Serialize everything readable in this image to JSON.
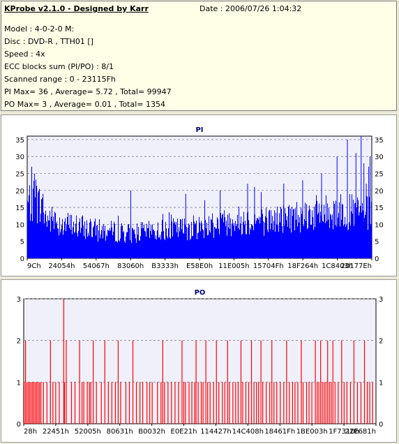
{
  "header": {
    "title": "KProbe v2.1.0 - Designed by Karr",
    "date": "Date : 2006/07/26 1:04:32",
    "lines": [
      "Model : 4-0-2-0 M:",
      "Disc : DVD-R , TTH01 []",
      "Speed : 4x",
      "ECC blocks sum (PI/PO) : 8/1",
      "Scanned range : 0 - 23115Fh",
      "PI Max= 36 , Average= 5.72 , Total= 99947",
      "PO Max= 3 , Average= 0.01 , Total= 1354"
    ]
  },
  "colors": {
    "pi": "#0000ff",
    "po": "#ff0000",
    "plot_bg": "#f0f0fa",
    "grid": "#8080a0"
  },
  "chart_data": [
    {
      "type": "bar",
      "title": "PI",
      "x_tick_labels": [
        "9Ch",
        "24054h",
        "54067h",
        "83060h",
        "B3333h",
        "E58E0h",
        "11E005h",
        "15704Fh",
        "18F264h",
        "1C8403h",
        "20177Eh"
      ],
      "y_ticks": [
        0,
        5,
        10,
        15,
        20,
        25,
        30,
        35
      ],
      "ylim": [
        0,
        36
      ],
      "xlim": [
        0,
        1
      ],
      "profile": [
        [
          0,
          17
        ],
        [
          0.02,
          20
        ],
        [
          0.05,
          13
        ],
        [
          0.1,
          11
        ],
        [
          0.2,
          9
        ],
        [
          0.3,
          8
        ],
        [
          0.4,
          9
        ],
        [
          0.5,
          10
        ],
        [
          0.6,
          12
        ],
        [
          0.7,
          12
        ],
        [
          0.8,
          14
        ],
        [
          0.9,
          15
        ],
        [
          1.0,
          14
        ]
      ],
      "spikes": [
        [
          0.012,
          27
        ],
        [
          0.02,
          25
        ],
        [
          0.045,
          19
        ],
        [
          0.3,
          20
        ],
        [
          0.46,
          19
        ],
        [
          0.56,
          20
        ],
        [
          0.64,
          22
        ],
        [
          0.66,
          21
        ],
        [
          0.745,
          22
        ],
        [
          0.8,
          23
        ],
        [
          0.855,
          25
        ],
        [
          0.9,
          30
        ],
        [
          0.93,
          35
        ],
        [
          0.955,
          31
        ],
        [
          0.97,
          36
        ],
        [
          0.978,
          28
        ],
        [
          0.985,
          22
        ],
        [
          0.992,
          27
        ],
        [
          0.996,
          30
        ]
      ]
    },
    {
      "type": "bar",
      "title": "PO",
      "x_tick_labels": [
        "28h",
        "22451h",
        "52005h",
        "80631h",
        "B0032h",
        "E0E21h",
        "114427h",
        "14C408h",
        "18461Fh",
        "1BE003h",
        "1F7310h",
        "22E681h"
      ],
      "y_ticks": [
        0,
        1,
        2,
        3
      ],
      "ylim": [
        0,
        3
      ],
      "xlim": [
        0,
        1
      ],
      "bars": [
        [
          0.0,
          1
        ],
        [
          0.004,
          2
        ],
        [
          0.008,
          1
        ],
        [
          0.012,
          1
        ],
        [
          0.016,
          1
        ],
        [
          0.02,
          1
        ],
        [
          0.024,
          1
        ],
        [
          0.028,
          1
        ],
        [
          0.032,
          1
        ],
        [
          0.036,
          1
        ],
        [
          0.04,
          1
        ],
        [
          0.044,
          1
        ],
        [
          0.048,
          1
        ],
        [
          0.055,
          1
        ],
        [
          0.065,
          1
        ],
        [
          0.075,
          2
        ],
        [
          0.082,
          1
        ],
        [
          0.09,
          1
        ],
        [
          0.1,
          1
        ],
        [
          0.115,
          1
        ],
        [
          0.12,
          2
        ],
        [
          0.135,
          1
        ],
        [
          0.145,
          1
        ],
        [
          0.158,
          2
        ],
        [
          0.165,
          1
        ],
        [
          0.17,
          1
        ],
        [
          0.18,
          1
        ],
        [
          0.186,
          1
        ],
        [
          0.19,
          1
        ],
        [
          0.197,
          2
        ],
        [
          0.206,
          1
        ],
        [
          0.22,
          1
        ],
        [
          0.23,
          2
        ],
        [
          0.24,
          1
        ],
        [
          0.25,
          1
        ],
        [
          0.26,
          1
        ],
        [
          0.268,
          2
        ],
        [
          0.275,
          1
        ],
        [
          0.29,
          1
        ],
        [
          0.3,
          1
        ],
        [
          0.31,
          2
        ],
        [
          0.32,
          1
        ],
        [
          0.33,
          1
        ],
        [
          0.338,
          1
        ],
        [
          0.35,
          1
        ],
        [
          0.358,
          1
        ],
        [
          0.365,
          1
        ],
        [
          0.38,
          1
        ],
        [
          0.39,
          1
        ],
        [
          0.395,
          2
        ],
        [
          0.4,
          1
        ],
        [
          0.41,
          1
        ],
        [
          0.42,
          1
        ],
        [
          0.43,
          1
        ],
        [
          0.44,
          1
        ],
        [
          0.45,
          2
        ],
        [
          0.455,
          1
        ],
        [
          0.46,
          1
        ],
        [
          0.47,
          1
        ],
        [
          0.478,
          1
        ],
        [
          0.486,
          1
        ],
        [
          0.49,
          2
        ],
        [
          0.496,
          1
        ],
        [
          0.505,
          1
        ],
        [
          0.51,
          1
        ],
        [
          0.518,
          2
        ],
        [
          0.523,
          1
        ],
        [
          0.53,
          1
        ],
        [
          0.54,
          1
        ],
        [
          0.548,
          2
        ],
        [
          0.555,
          1
        ],
        [
          0.565,
          1
        ],
        [
          0.572,
          1
        ],
        [
          0.58,
          2
        ],
        [
          0.585,
          1
        ],
        [
          0.595,
          1
        ],
        [
          0.603,
          1
        ],
        [
          0.61,
          1
        ],
        [
          0.618,
          2
        ],
        [
          0.623,
          1
        ],
        [
          0.632,
          1
        ],
        [
          0.64,
          1
        ],
        [
          0.648,
          2
        ],
        [
          0.655,
          1
        ],
        [
          0.662,
          1
        ],
        [
          0.668,
          1
        ],
        [
          0.675,
          2
        ],
        [
          0.68,
          1
        ],
        [
          0.69,
          1
        ],
        [
          0.7,
          1
        ],
        [
          0.706,
          2
        ],
        [
          0.712,
          1
        ],
        [
          0.72,
          1
        ],
        [
          0.73,
          1
        ],
        [
          0.74,
          1
        ],
        [
          0.748,
          2
        ],
        [
          0.756,
          1
        ],
        [
          0.765,
          1
        ],
        [
          0.772,
          1
        ],
        [
          0.78,
          1
        ],
        [
          0.79,
          2
        ],
        [
          0.795,
          1
        ],
        [
          0.805,
          1
        ],
        [
          0.812,
          1
        ],
        [
          0.82,
          1
        ],
        [
          0.83,
          2
        ],
        [
          0.835,
          1
        ],
        [
          0.84,
          1
        ],
        [
          0.845,
          2
        ],
        [
          0.85,
          1
        ],
        [
          0.855,
          1
        ],
        [
          0.86,
          1
        ],
        [
          0.865,
          2
        ],
        [
          0.87,
          1
        ],
        [
          0.875,
          1
        ],
        [
          0.88,
          2
        ],
        [
          0.886,
          1
        ],
        [
          0.895,
          1
        ],
        [
          0.905,
          2
        ],
        [
          0.912,
          1
        ],
        [
          0.92,
          1
        ],
        [
          0.93,
          1
        ],
        [
          0.94,
          2
        ],
        [
          0.95,
          1
        ],
        [
          0.96,
          1
        ],
        [
          0.97,
          2
        ],
        [
          0.978,
          1
        ],
        [
          0.985,
          1
        ],
        [
          0.993,
          1
        ]
      ],
      "spike": [
        0.113,
        3
      ]
    }
  ]
}
